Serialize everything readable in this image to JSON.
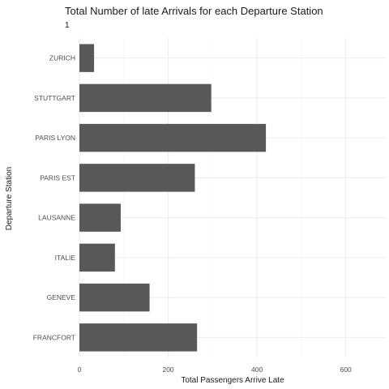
{
  "chart_data": {
    "type": "bar",
    "orientation": "horizontal",
    "title": "Total Number of late Arrivals for each Departure Station",
    "subtitle": "1",
    "xlabel": "Total Passengers Arrive Late",
    "ylabel": "Departure Station",
    "categories": [
      "ZURICH",
      "STUTTGART",
      "PARIS LYON",
      "PARIS EST",
      "LAUSANNE",
      "ITALIE",
      "GENEVE",
      "FRANCFORT"
    ],
    "values": [
      33,
      297,
      420,
      260,
      93,
      80,
      158,
      265
    ],
    "xlim": [
      0,
      690
    ],
    "x_ticks": [
      0,
      200,
      400,
      600
    ],
    "grid": true,
    "bar_color": "#595959"
  }
}
